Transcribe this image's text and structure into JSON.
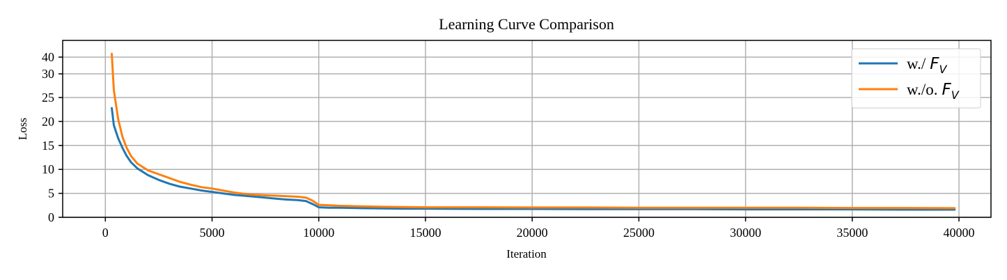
{
  "chart_data": {
    "type": "line",
    "title": "Learning Curve Comparison",
    "xlabel": "Iteration",
    "ylabel": "Loss",
    "xlim": [
      -2000,
      41500
    ],
    "ylim": [
      0,
      45
    ],
    "y_scale": "piecewise: linear 0–25, compressed 25–45",
    "x_ticks": [
      0,
      5000,
      10000,
      15000,
      20000,
      25000,
      30000,
      35000,
      40000
    ],
    "x_tick_labels": [
      "0",
      "5000",
      "10000",
      "15000",
      "20000",
      "25000",
      "30000",
      "35000",
      "40000"
    ],
    "y_ticks": [
      0,
      5,
      10,
      15,
      20,
      25,
      30,
      40
    ],
    "y_tick_labels": [
      "0",
      "5",
      "10",
      "15",
      "20",
      "25",
      "30",
      "40"
    ],
    "grid": true,
    "legend_position": "top-right",
    "series": [
      {
        "name": "w./ F_V",
        "legend_prefix": "w./",
        "legend_symbol": "F",
        "legend_subscript": "V",
        "color": "#1f77b4",
        "x": [
          300,
          400,
          600,
          800,
          1000,
          1200,
          1500,
          2000,
          2500,
          3000,
          3500,
          4000,
          4500,
          5000,
          5500,
          6000,
          6500,
          7000,
          7500,
          8000,
          8500,
          9000,
          9400,
          9700,
          10000,
          10500,
          11000,
          12000,
          13000,
          14000,
          15000,
          17500,
          20000,
          22500,
          25000,
          27500,
          30000,
          32500,
          35000,
          37500,
          39800
        ],
        "y": [
          22.8,
          19.2,
          16.5,
          14.5,
          12.8,
          11.5,
          10.2,
          8.8,
          7.8,
          7.0,
          6.4,
          6.0,
          5.6,
          5.3,
          5.0,
          4.7,
          4.5,
          4.3,
          4.1,
          3.9,
          3.7,
          3.6,
          3.4,
          2.8,
          2.1,
          2.0,
          2.0,
          1.9,
          1.85,
          1.8,
          1.8,
          1.75,
          1.75,
          1.7,
          1.7,
          1.7,
          1.65,
          1.65,
          1.65,
          1.6,
          1.6
        ]
      },
      {
        "name": "w./o. F_V",
        "legend_prefix": "w./o.",
        "legend_symbol": "F",
        "legend_subscript": "V",
        "color": "#ff7f0e",
        "x": [
          300,
          400,
          600,
          800,
          1000,
          1200,
          1500,
          2000,
          2500,
          3000,
          3500,
          4000,
          4500,
          5000,
          5500,
          6000,
          6500,
          7000,
          7500,
          8000,
          8500,
          9000,
          9400,
          9700,
          10000,
          10500,
          11000,
          12000,
          13000,
          14000,
          15000,
          17500,
          20000,
          22500,
          25000,
          27500,
          30000,
          32500,
          35000,
          37500,
          39800
        ],
        "y": [
          42.0,
          26.5,
          20.5,
          16.8,
          14.5,
          12.8,
          11.2,
          9.8,
          9.0,
          8.2,
          7.4,
          6.8,
          6.3,
          6.0,
          5.6,
          5.2,
          4.9,
          4.7,
          4.6,
          4.5,
          4.4,
          4.3,
          4.1,
          3.5,
          2.6,
          2.5,
          2.4,
          2.3,
          2.2,
          2.15,
          2.1,
          2.1,
          2.05,
          2.05,
          2.0,
          2.0,
          2.0,
          2.0,
          1.95,
          1.95,
          1.9
        ]
      }
    ]
  }
}
